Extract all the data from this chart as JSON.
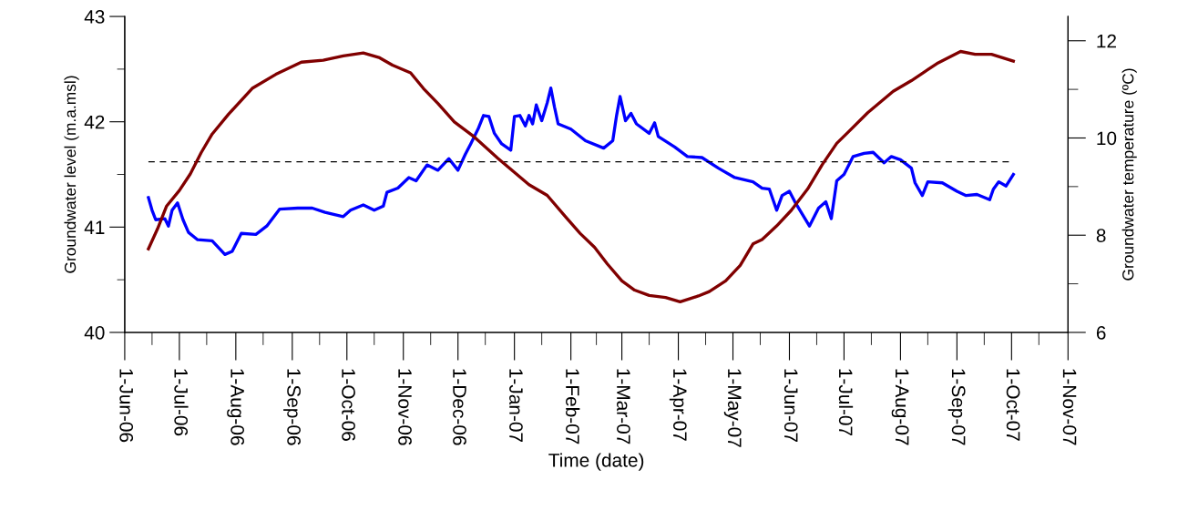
{
  "chart_data": {
    "type": "line",
    "xlabel": "Time (date)",
    "ylabel": "Groundwater level (m.a.msl)",
    "y2label": "Groundwater temperature (ºC)",
    "xlim": [
      "2006-06-01",
      "2007-11-01"
    ],
    "ylim": [
      40,
      43
    ],
    "yticks": [
      40,
      {
        "value": 40.5,
        "label": null
      },
      41,
      {
        "value": 41.5,
        "label": null
      },
      42,
      {
        "value": 42.5,
        "label": null
      },
      43
    ],
    "y2lim": [
      6,
      12.5
    ],
    "y2ticks": [
      6,
      {
        "value": 7,
        "label": null
      },
      8,
      {
        "value": 9,
        "label": null
      },
      10,
      {
        "value": 11,
        "label": null
      },
      12
    ],
    "grid": false,
    "legend": false,
    "marker": "none",
    "line_style": "solid",
    "ref_lines": [
      {
        "axis": "y",
        "value": 41.62,
        "color": "#000000",
        "line_style": "dashed"
      }
    ],
    "series": [
      {
        "color": "#0000ff",
        "axis": "y",
        "x": [
          "2006-06-14",
          "2006-06-16",
          "2006-06-18",
          "2006-06-23",
          "2006-06-25",
          "2006-06-27",
          "2006-06-30",
          "2006-07-03",
          "2006-07-06",
          "2006-07-11",
          "2006-07-19",
          "2006-07-26",
          "2006-07-30",
          "2006-08-04",
          "2006-08-12",
          "2006-08-18",
          "2006-08-25",
          "2006-09-04",
          "2006-09-12",
          "2006-09-19",
          "2006-09-29",
          "2006-10-03",
          "2006-10-10",
          "2006-10-16",
          "2006-10-21",
          "2006-10-23",
          "2006-10-29",
          "2006-11-04",
          "2006-11-08",
          "2006-11-14",
          "2006-11-20",
          "2006-11-26",
          "2006-12-01",
          "2006-12-05",
          "2006-12-08",
          "2006-12-12",
          "2006-12-15",
          "2006-12-18",
          "2006-12-21",
          "2006-12-25",
          "2006-12-30",
          "2007-01-01",
          "2007-01-04",
          "2007-01-07",
          "2007-01-09",
          "2007-01-11",
          "2007-01-13",
          "2007-01-16",
          "2007-01-19",
          "2007-01-21",
          "2007-01-23",
          "2007-01-25",
          "2007-02-01",
          "2007-02-09",
          "2007-02-19",
          "2007-02-24",
          "2007-02-26",
          "2007-02-28",
          "2007-03-03",
          "2007-03-06",
          "2007-03-09",
          "2007-03-16",
          "2007-03-19",
          "2007-03-21",
          "2007-03-30",
          "2007-04-06",
          "2007-04-14",
          "2007-04-23",
          "2007-05-02",
          "2007-05-12",
          "2007-05-17",
          "2007-05-21",
          "2007-05-25",
          "2007-05-28",
          "2007-06-01",
          "2007-06-04",
          "2007-06-12",
          "2007-06-17",
          "2007-06-21",
          "2007-06-24",
          "2007-06-27",
          "2007-07-01",
          "2007-07-06",
          "2007-07-12",
          "2007-07-17",
          "2007-07-23",
          "2007-07-27",
          "2007-08-01",
          "2007-08-07",
          "2007-08-09",
          "2007-08-13",
          "2007-08-16",
          "2007-08-24",
          "2007-09-01",
          "2007-09-06",
          "2007-09-12",
          "2007-09-19",
          "2007-09-21",
          "2007-09-24",
          "2007-09-28",
          "2007-10-02"
        ],
        "values": [
          41.28,
          41.16,
          41.07,
          41.08,
          41.01,
          41.16,
          41.23,
          41.07,
          40.95,
          40.88,
          40.87,
          40.74,
          40.77,
          40.94,
          40.93,
          41.01,
          41.17,
          41.18,
          41.18,
          41.14,
          41.1,
          41.16,
          41.21,
          41.16,
          41.2,
          41.33,
          41.37,
          41.47,
          41.44,
          41.59,
          41.54,
          41.65,
          41.54,
          41.69,
          41.79,
          41.93,
          42.06,
          42.05,
          41.89,
          41.79,
          41.73,
          42.05,
          42.06,
          41.96,
          42.06,
          41.98,
          42.16,
          42.01,
          42.18,
          42.32,
          42.14,
          41.98,
          41.93,
          41.82,
          41.75,
          41.82,
          42.05,
          42.24,
          42.01,
          42.08,
          41.98,
          41.89,
          41.99,
          41.86,
          41.76,
          41.67,
          41.66,
          41.56,
          41.47,
          41.43,
          41.37,
          41.36,
          41.16,
          41.3,
          41.34,
          41.24,
          41.01,
          41.18,
          41.24,
          41.08,
          41.44,
          41.5,
          41.67,
          41.7,
          41.71,
          41.61,
          41.67,
          41.64,
          41.56,
          41.42,
          41.3,
          41.43,
          41.42,
          41.34,
          41.3,
          41.31,
          41.26,
          41.36,
          41.43,
          41.39,
          41.5
        ]
      },
      {
        "color": "#800000",
        "axis": "y2",
        "x": [
          "2006-06-14",
          "2006-06-19",
          "2006-06-24",
          "2006-07-01",
          "2006-07-07",
          "2006-07-13",
          "2006-07-19",
          "2006-07-28",
          "2006-08-10",
          "2006-08-23",
          "2006-09-06",
          "2006-09-18",
          "2006-09-29",
          "2006-10-10",
          "2006-10-19",
          "2006-10-26",
          "2006-11-05",
          "2006-11-12",
          "2006-11-20",
          "2006-11-29",
          "2006-12-10",
          "2006-12-23",
          "2007-01-09",
          "2007-01-19",
          "2007-01-29",
          "2007-02-06",
          "2007-02-14",
          "2007-02-21",
          "2007-03-01",
          "2007-03-08",
          "2007-03-16",
          "2007-03-25",
          "2007-04-02",
          "2007-04-12",
          "2007-04-18",
          "2007-04-27",
          "2007-05-05",
          "2007-05-12",
          "2007-05-17",
          "2007-05-25",
          "2007-06-02",
          "2007-06-11",
          "2007-06-19",
          "2007-06-27",
          "2007-07-03",
          "2007-07-14",
          "2007-07-28",
          "2007-08-07",
          "2007-08-21",
          "2007-09-03",
          "2007-09-11",
          "2007-09-20",
          "2007-10-02"
        ],
        "values": [
          7.72,
          8.13,
          8.6,
          8.92,
          9.26,
          9.7,
          10.08,
          10.49,
          11.02,
          11.31,
          11.56,
          11.6,
          11.69,
          11.75,
          11.65,
          11.5,
          11.34,
          11.02,
          10.71,
          10.33,
          10.02,
          9.58,
          9.04,
          8.82,
          8.38,
          8.04,
          7.75,
          7.41,
          7.06,
          6.87,
          6.76,
          6.72,
          6.63,
          6.75,
          6.84,
          7.06,
          7.38,
          7.82,
          7.91,
          8.19,
          8.51,
          8.95,
          9.45,
          9.89,
          10.11,
          10.52,
          10.96,
          11.18,
          11.53,
          11.78,
          11.72,
          11.72,
          11.58
        ]
      }
    ],
    "xticks": [
      {
        "value": "2006-06-01",
        "label": "1-Jun-06"
      },
      {
        "value": "2006-06-16",
        "label": null
      },
      {
        "value": "2006-07-01",
        "label": "1-Jul-06"
      },
      {
        "value": "2006-07-16",
        "label": null
      },
      {
        "value": "2006-08-01",
        "label": "1-Aug-06"
      },
      {
        "value": "2006-08-16",
        "label": null
      },
      {
        "value": "2006-09-01",
        "label": "1-Sep-06"
      },
      {
        "value": "2006-09-16",
        "label": null
      },
      {
        "value": "2006-10-01",
        "label": "1-Oct-06"
      },
      {
        "value": "2006-10-16",
        "label": null
      },
      {
        "value": "2006-11-01",
        "label": "1-Nov-06"
      },
      {
        "value": "2006-11-16",
        "label": null
      },
      {
        "value": "2006-12-01",
        "label": "1-Dec-06"
      },
      {
        "value": "2006-12-16",
        "label": null
      },
      {
        "value": "2007-01-01",
        "label": "1-Jan-07"
      },
      {
        "value": "2007-01-16",
        "label": null
      },
      {
        "value": "2007-02-01",
        "label": "1-Feb-07"
      },
      {
        "value": "2007-02-15",
        "label": null
      },
      {
        "value": "2007-03-01",
        "label": "1-Mar-07"
      },
      {
        "value": "2007-03-16",
        "label": null
      },
      {
        "value": "2007-04-01",
        "label": "1-Apr-07"
      },
      {
        "value": "2007-04-16",
        "label": null
      },
      {
        "value": "2007-05-01",
        "label": "1-May-07"
      },
      {
        "value": "2007-05-16",
        "label": null
      },
      {
        "value": "2007-06-01",
        "label": "1-Jun-07"
      },
      {
        "value": "2007-06-16",
        "label": null
      },
      {
        "value": "2007-07-01",
        "label": "1-Jul-07"
      },
      {
        "value": "2007-07-16",
        "label": null
      },
      {
        "value": "2007-08-01",
        "label": "1-Aug-07"
      },
      {
        "value": "2007-08-16",
        "label": null
      },
      {
        "value": "2007-09-01",
        "label": "1-Sep-07"
      },
      {
        "value": "2007-09-16",
        "label": null
      },
      {
        "value": "2007-10-01",
        "label": "1-Oct-07"
      },
      {
        "value": "2007-10-16",
        "label": null
      },
      {
        "value": "2007-11-01",
        "label": "1-Nov-07"
      }
    ]
  }
}
